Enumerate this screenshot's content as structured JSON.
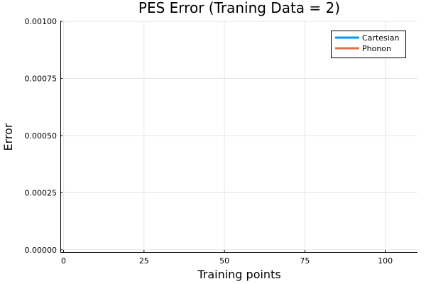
{
  "chart_data": {
    "type": "line",
    "title": "PES Error (Traning Data = 2)",
    "xlabel": "Training points",
    "ylabel": "Error",
    "xlim": [
      -1,
      110
    ],
    "ylim": [
      -1e-05,
      0.001
    ],
    "xticks": [
      0,
      25,
      50,
      75,
      100
    ],
    "xtick_labels": [
      "0",
      "25",
      "50",
      "75",
      "100"
    ],
    "yticks": [
      0,
      0.00025,
      0.0005,
      0.00075,
      0.001
    ],
    "ytick_labels": [
      "0.00000",
      "0.00025",
      "0.00050",
      "0.00075",
      "0.00100"
    ],
    "grid": true,
    "legend_position": "top-right",
    "series": [
      {
        "name": "Cartesian",
        "color": "#009af9",
        "x": [],
        "y": []
      },
      {
        "name": "Phonon",
        "color": "#e26f46",
        "x": [],
        "y": []
      }
    ]
  }
}
